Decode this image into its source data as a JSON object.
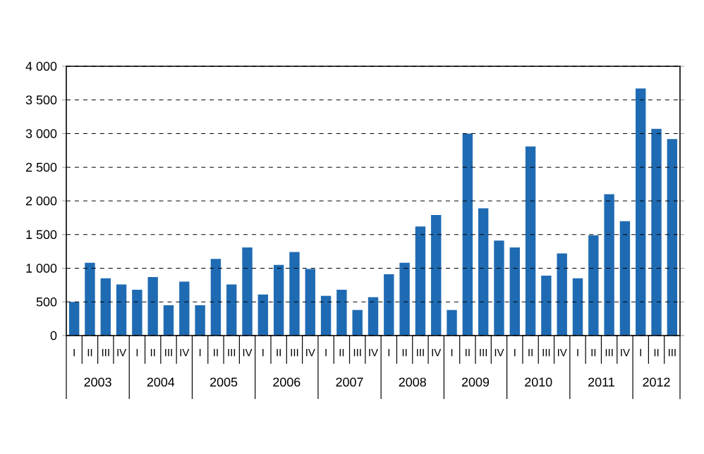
{
  "chart_data": {
    "type": "bar",
    "categories": [
      "I",
      "II",
      "III",
      "IV",
      "I",
      "II",
      "III",
      "IV",
      "I",
      "II",
      "III",
      "IV",
      "I",
      "II",
      "III",
      "IV",
      "I",
      "II",
      "III",
      "IV",
      "I",
      "II",
      "III",
      "IV",
      "I",
      "II",
      "III",
      "IV",
      "I",
      "II",
      "III",
      "IV",
      "I",
      "II",
      "III",
      "IV",
      "I",
      "II",
      "III"
    ],
    "values": [
      500,
      1080,
      850,
      760,
      680,
      870,
      450,
      800,
      450,
      1140,
      760,
      1310,
      610,
      1050,
      1240,
      990,
      590,
      680,
      380,
      570,
      910,
      1080,
      1620,
      1790,
      380,
      3000,
      1890,
      1410,
      1310,
      2810,
      890,
      1220,
      850,
      1490,
      2100,
      1700,
      3670,
      3070,
      2920
    ],
    "color": "#1f6bb3",
    "ylim": [
      0,
      4000
    ],
    "yticks": [
      0,
      500,
      {
        "value": 1000,
        "label": "1 000"
      },
      {
        "value": 1500,
        "label": "1 500"
      },
      {
        "value": 2000,
        "label": "2 000"
      },
      {
        "value": 2500,
        "label": "2 500"
      },
      {
        "value": 3000,
        "label": "3 000"
      },
      {
        "value": 3500,
        "label": "3 500"
      },
      {
        "value": 4000,
        "label": "4 000"
      }
    ],
    "grid": "y",
    "annotations": [
      "2003",
      "2004",
      "2005",
      "2006",
      "2007",
      "2008",
      "2009",
      "2010",
      "2011",
      "2012"
    ]
  }
}
